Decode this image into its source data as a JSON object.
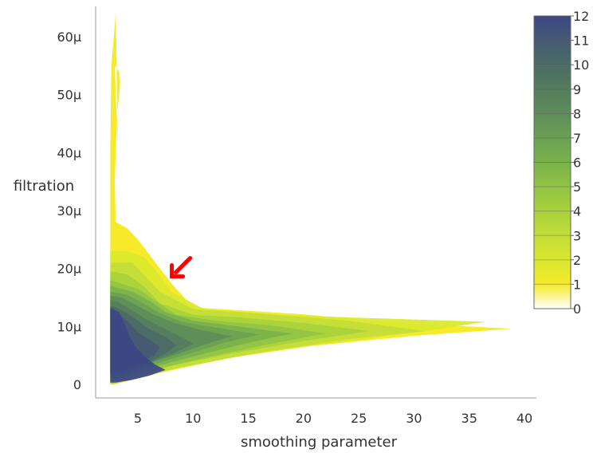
{
  "chart_data": {
    "type": "heatmap",
    "title": "",
    "xlabel": "smoothing parameter",
    "ylabel": "filtration",
    "x_ticks": [
      "5",
      "10",
      "15",
      "20",
      "25",
      "30",
      "35",
      "40"
    ],
    "x_tick_values": [
      5,
      10,
      15,
      20,
      25,
      30,
      35,
      40
    ],
    "y_ticks": [
      "0",
      "10µ",
      "20µ",
      "30µ",
      "40µ",
      "50µ",
      "60µ"
    ],
    "y_tick_values": [
      0,
      10,
      20,
      30,
      40,
      50,
      60
    ],
    "y_unit": "µ",
    "xlim": [
      2.5,
      40.5
    ],
    "ylim": [
      -1,
      64
    ],
    "colorbar": {
      "ticks": [
        "0",
        "1",
        "2",
        "3",
        "4",
        "5",
        "6",
        "7",
        "8",
        "9",
        "10",
        "11",
        "12"
      ],
      "values": [
        0,
        1,
        2,
        3,
        4,
        5,
        6,
        7,
        8,
        9,
        10,
        11,
        12
      ],
      "colors": [
        "#fffcea",
        "#f6ea2a",
        "#d9e82e",
        "#c2dd3a",
        "#a8d13c",
        "#91c346",
        "#7ab24c",
        "#6aa153",
        "#5e8d59",
        "#557c5e",
        "#4c6b66",
        "#455a73",
        "#3b4784"
      ],
      "placement": "right"
    },
    "annotation": {
      "type": "arrow",
      "color": "#ff0000",
      "points_to": {
        "x": 8,
        "y": 18.5
      }
    },
    "regions": [
      {
        "level": 1,
        "polygon": [
          [
            2.8,
            0
          ],
          [
            7,
            2
          ],
          [
            13,
            4.5
          ],
          [
            20,
            6.5
          ],
          [
            30,
            8.4
          ],
          [
            38.8,
            9.6
          ],
          [
            27,
            10.8
          ],
          [
            20,
            12.1
          ],
          [
            10,
            13.3
          ],
          [
            8,
            17.5
          ],
          [
            7,
            20
          ],
          [
            5,
            25
          ],
          [
            4,
            27
          ],
          [
            3,
            28
          ],
          [
            2.9,
            35
          ],
          [
            3.1,
            45
          ],
          [
            2.9,
            55
          ],
          [
            3.3,
            54
          ],
          [
            3.4,
            52
          ],
          [
            3.1,
            46
          ],
          [
            3.2,
            40
          ],
          [
            3.0,
            64
          ],
          [
            2.6,
            55
          ],
          [
            2.5,
            40
          ],
          [
            2.5,
            20
          ],
          [
            2.5,
            0
          ]
        ]
      },
      {
        "level": 2,
        "polygon": [
          [
            2.8,
            0
          ],
          [
            8,
            2.5
          ],
          [
            14,
            4.8
          ],
          [
            22,
            7
          ],
          [
            30,
            8.9
          ],
          [
            36.5,
            10.8
          ],
          [
            25,
            11.5
          ],
          [
            18,
            12
          ],
          [
            11,
            13
          ],
          [
            8,
            16
          ],
          [
            6.5,
            20
          ],
          [
            5.5,
            22
          ],
          [
            4,
            23
          ],
          [
            2.5,
            23
          ],
          [
            2.5,
            0
          ]
        ]
      },
      {
        "level": 3,
        "polygon": [
          [
            2.8,
            0
          ],
          [
            9,
            3
          ],
          [
            16,
            5.5
          ],
          [
            24,
            7.8
          ],
          [
            31,
            9.2
          ],
          [
            24,
            11
          ],
          [
            16,
            12.2
          ],
          [
            10,
            13
          ],
          [
            7,
            16
          ],
          [
            5.5,
            19
          ],
          [
            4.5,
            21
          ],
          [
            2.5,
            21
          ],
          [
            2.5,
            0
          ]
        ]
      },
      {
        "level": 4,
        "polygon": [
          [
            2.8,
            0.3
          ],
          [
            8,
            3.2
          ],
          [
            14,
            5.5
          ],
          [
            20,
            7.5
          ],
          [
            26,
            9.2
          ],
          [
            20,
            10.6
          ],
          [
            14,
            11.6
          ],
          [
            10,
            12
          ],
          [
            7,
            14
          ],
          [
            5.5,
            17
          ],
          [
            4,
            19
          ],
          [
            2.5,
            19.5
          ],
          [
            2.5,
            0.3
          ]
        ]
      },
      {
        "level": 5,
        "polygon": [
          [
            3,
            0.5
          ],
          [
            7.5,
            3
          ],
          [
            12,
            5
          ],
          [
            17,
            7
          ],
          [
            22,
            8.8
          ],
          [
            17,
            10.2
          ],
          [
            12,
            11
          ],
          [
            8.5,
            12
          ],
          [
            6.5,
            14.5
          ],
          [
            5,
            16.5
          ],
          [
            2.5,
            18
          ],
          [
            2.5,
            0.5
          ]
        ]
      },
      {
        "level": 6,
        "polygon": [
          [
            3,
            0.8
          ],
          [
            7,
            3.3
          ],
          [
            11,
            5.3
          ],
          [
            15,
            7.2
          ],
          [
            19,
            8.8
          ],
          [
            14,
            10
          ],
          [
            10,
            11
          ],
          [
            7.5,
            12.5
          ],
          [
            6,
            14.5
          ],
          [
            4.5,
            16
          ],
          [
            2.5,
            17
          ],
          [
            2.5,
            0.8
          ]
        ]
      },
      {
        "level": 7,
        "polygon": [
          [
            3,
            1
          ],
          [
            6.5,
            3.5
          ],
          [
            10,
            5.5
          ],
          [
            13,
            7.3
          ],
          [
            16,
            8.6
          ],
          [
            12,
            9.8
          ],
          [
            9,
            10.8
          ],
          [
            7,
            12.3
          ],
          [
            5.5,
            14
          ],
          [
            4,
            15.5
          ],
          [
            2.5,
            16
          ],
          [
            2.5,
            1
          ]
        ]
      },
      {
        "level": 8,
        "polygon": [
          [
            3,
            1.3
          ],
          [
            6,
            3.6
          ],
          [
            9,
            5.5
          ],
          [
            11.5,
            7.2
          ],
          [
            13.5,
            8.3
          ],
          [
            10.5,
            9.5
          ],
          [
            8.5,
            10.5
          ],
          [
            6.5,
            12
          ],
          [
            5,
            13.5
          ],
          [
            3.5,
            15
          ],
          [
            2.5,
            15.3
          ],
          [
            2.5,
            1.3
          ]
        ]
      },
      {
        "level": 9,
        "polygon": [
          [
            3,
            1.5
          ],
          [
            6,
            3.7
          ],
          [
            8.5,
            5.6
          ],
          [
            10,
            7
          ],
          [
            8.5,
            8.6
          ],
          [
            7,
            10
          ],
          [
            5.5,
            11.5
          ],
          [
            4.5,
            12.8
          ],
          [
            3.2,
            14.2
          ],
          [
            2.5,
            14.5
          ],
          [
            2.5,
            1.5
          ]
        ]
      },
      {
        "level": 10,
        "polygon": [
          [
            3,
            1.8
          ],
          [
            5.5,
            3.5
          ],
          [
            7.5,
            5.3
          ],
          [
            8.5,
            6.8
          ],
          [
            7.5,
            8.2
          ],
          [
            6,
            9.6
          ],
          [
            5,
            11
          ],
          [
            4,
            12.3
          ],
          [
            3,
            13.3
          ],
          [
            2.5,
            13.5
          ],
          [
            2.5,
            1.8
          ]
        ]
      },
      {
        "level": 11,
        "polygon": [
          [
            3,
            2.2
          ],
          [
            5,
            3.5
          ],
          [
            6.5,
            5
          ],
          [
            7,
            6.5
          ],
          [
            6,
            7.8
          ],
          [
            5,
            9
          ],
          [
            4.3,
            10.5
          ],
          [
            3.5,
            11.8
          ],
          [
            2.5,
            12.8
          ],
          [
            2.5,
            2.2
          ]
        ]
      },
      {
        "level": 12,
        "polygon": [
          [
            3,
            0.3
          ],
          [
            4.5,
            0.8
          ],
          [
            6,
            1.5
          ],
          [
            7.5,
            2.5
          ],
          [
            6.5,
            3.5
          ],
          [
            5.5,
            5
          ],
          [
            4.8,
            6.5
          ],
          [
            4.2,
            8.5
          ],
          [
            3.8,
            10.5
          ],
          [
            3.3,
            12.5
          ],
          [
            2.5,
            13.2
          ],
          [
            2.5,
            0.3
          ]
        ]
      }
    ]
  }
}
